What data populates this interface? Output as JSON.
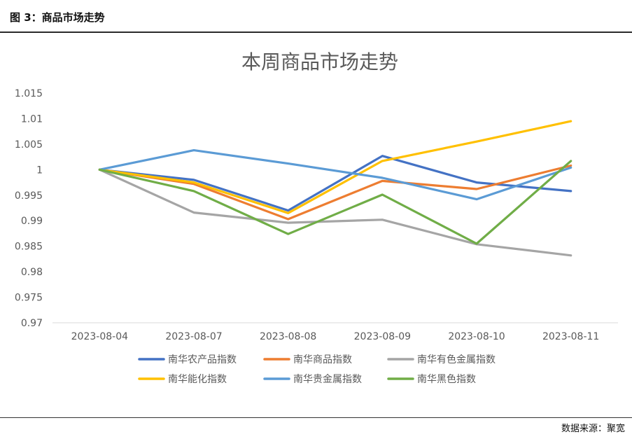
{
  "figure_header": "图 3：商品市场走势",
  "source_note": "数据来源：聚宽",
  "chart_data": {
    "type": "line",
    "title": "本周商品市场走势",
    "categories": [
      "2023-08-04",
      "2023-08-07",
      "2023-08-08",
      "2023-08-09",
      "2023-08-10",
      "2023-08-11"
    ],
    "ylim": [
      0.97,
      1.015
    ],
    "yticks": [
      "1.015",
      "1.01",
      "1.005",
      "1",
      "0.995",
      "0.99",
      "0.985",
      "0.98",
      "0.975",
      "0.97"
    ],
    "grid": false,
    "legend_position": "bottom",
    "series": [
      {
        "name": "南华农产品指数",
        "color": "#4472C4",
        "values": [
          1.0,
          0.998,
          0.992,
          1.0027,
          0.9975,
          0.9958
        ]
      },
      {
        "name": "南华商品指数",
        "color": "#ED7D31",
        "values": [
          1.0,
          0.9972,
          0.9903,
          0.9978,
          0.9962,
          1.0008
        ]
      },
      {
        "name": "南华有色金属指数",
        "color": "#A5A5A5",
        "values": [
          1.0,
          0.9916,
          0.9896,
          0.9902,
          0.9854,
          0.9832
        ]
      },
      {
        "name": "南华能化指数",
        "color": "#FFC000",
        "values": [
          1.0,
          0.9975,
          0.9915,
          1.0017,
          1.0055,
          1.0095
        ]
      },
      {
        "name": "南华贵金属指数",
        "color": "#5B9BD5",
        "values": [
          1.0,
          1.0038,
          1.0012,
          0.9984,
          0.9942,
          1.0004
        ]
      },
      {
        "name": "南华黑色指数",
        "color": "#70AD47",
        "values": [
          1.0,
          0.9958,
          0.9874,
          0.9951,
          0.9855,
          1.0017
        ]
      }
    ]
  }
}
